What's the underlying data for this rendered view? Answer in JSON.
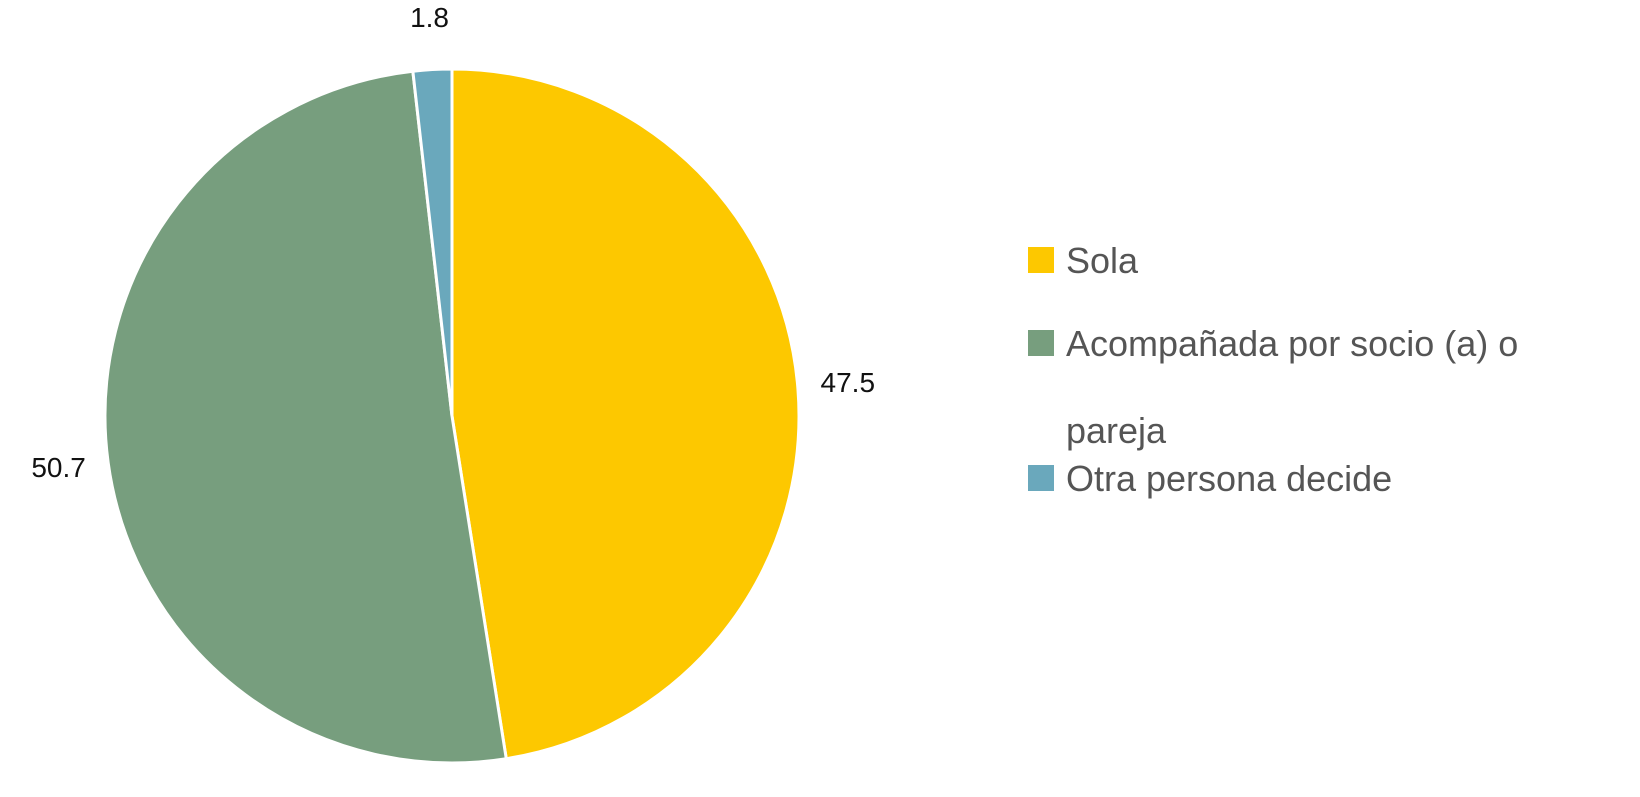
{
  "chart_data": {
    "type": "pie",
    "categories": [
      "Sola",
      "Acompañada por socio (a) o pareja",
      "Otra persona decide"
    ],
    "values": [
      47.5,
      50.7,
      1.8
    ],
    "colors": [
      "#fdc800",
      "#779e7e",
      "#6aa8bc"
    ],
    "legend": "right"
  }
}
